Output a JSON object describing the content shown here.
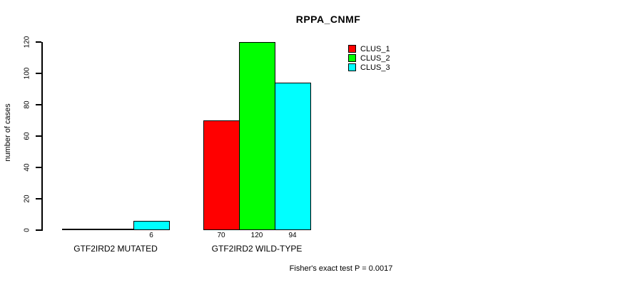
{
  "chart_data": {
    "type": "bar",
    "title": "RPPA_CNMF",
    "ylabel": "number of cases",
    "xlabel": "",
    "ylim": [
      0,
      120
    ],
    "yticks": [
      0,
      20,
      40,
      60,
      80,
      100,
      120
    ],
    "grid": false,
    "legend_position": "top-right",
    "series": [
      {
        "name": "CLUS_1",
        "color": "#ff0000"
      },
      {
        "name": "CLUS_2",
        "color": "#00ff00"
      },
      {
        "name": "CLUS_3",
        "color": "#00ffff"
      }
    ],
    "groups": [
      {
        "label": "GTF2IRD2 MUTATED",
        "values": [
          0,
          0,
          6
        ],
        "value_labels": [
          "",
          "",
          "6"
        ]
      },
      {
        "label": "GTF2IRD2 WILD-TYPE",
        "values": [
          70,
          120,
          94
        ],
        "value_labels": [
          "70",
          "120",
          "94"
        ]
      }
    ],
    "footnote": "Fisher's exact test P = 0.0017"
  },
  "colors": {
    "background": "#ffffff",
    "axis": "#000000",
    "text": "#000000"
  }
}
